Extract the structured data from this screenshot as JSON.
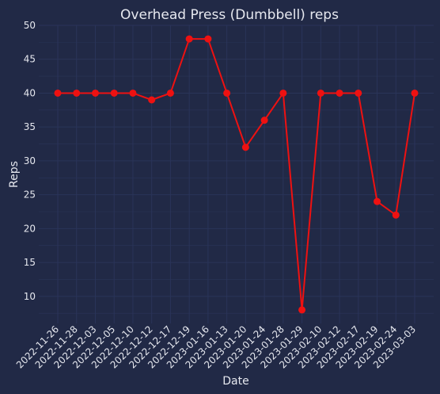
{
  "chart_data": {
    "type": "line",
    "title": "Overhead Press (Dumbbell) reps",
    "xlabel": "Date",
    "ylabel": "Reps",
    "categories": [
      "2022-11-26",
      "2022-11-28",
      "2022-12-03",
      "2022-12-05",
      "2022-12-10",
      "2022-12-12",
      "2022-12-17",
      "2022-12-19",
      "2023-01-16",
      "2023-01-13",
      "2023-01-20",
      "2023-01-24",
      "2023-01-28",
      "2023-01-29",
      "2023-02-10",
      "2023-02-12",
      "2023-02-17",
      "2023-02-19",
      "2023-02-24",
      "2023-03-03"
    ],
    "values": [
      40,
      40,
      40,
      40,
      40,
      39,
      40,
      48,
      48,
      40,
      32,
      36,
      40,
      8,
      40,
      40,
      40,
      24,
      22,
      40
    ],
    "yticks": [
      10,
      15,
      20,
      25,
      30,
      35,
      40,
      45,
      50
    ],
    "ylim": [
      6.0,
      50.0
    ],
    "grid": true,
    "colors": {
      "background": "#212946",
      "grid": "#2a3459",
      "line": "#ee1111",
      "text": "#e6e8ef"
    }
  }
}
